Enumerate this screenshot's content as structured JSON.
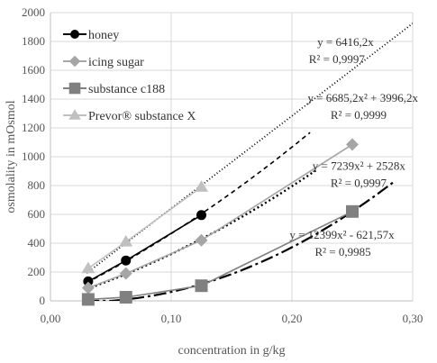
{
  "chart_data": {
    "type": "scatter",
    "xlabel": "concentration in g/kg",
    "ylabel": "osmolality in mOsmol",
    "xlim": [
      0,
      0.3
    ],
    "ylim": [
      0,
      2000
    ],
    "x_ticks": [
      {
        "value": 0.0,
        "label": "0,00"
      },
      {
        "value": 0.1,
        "label": "0,10"
      },
      {
        "value": 0.2,
        "label": "0,20"
      },
      {
        "value": 0.3,
        "label": "0,30"
      }
    ],
    "y_ticks": [
      {
        "value": 0,
        "label": "0"
      },
      {
        "value": 200,
        "label": "200"
      },
      {
        "value": 400,
        "label": "400"
      },
      {
        "value": 600,
        "label": "600"
      },
      {
        "value": 800,
        "label": "800"
      },
      {
        "value": 1000,
        "label": "1000"
      },
      {
        "value": 1200,
        "label": "1200"
      },
      {
        "value": 1400,
        "label": "1400"
      },
      {
        "value": 1600,
        "label": "1600"
      },
      {
        "value": 1800,
        "label": "1800"
      },
      {
        "value": 2000,
        "label": "2000"
      }
    ],
    "grid": {
      "horizontal": true,
      "vertical": true
    },
    "legend_position": "top-left",
    "series": [
      {
        "name": "honey",
        "marker": "circle",
        "color": "#000000",
        "x": [
          0.03125,
          0.0625,
          0.125
        ],
        "y": [
          135,
          280,
          595
        ],
        "trend": {
          "a": 6685.2,
          "b": 3996.2,
          "c": 0,
          "x_end": 0.215,
          "color": "#000000",
          "dash": "5,4",
          "width": 1.6
        },
        "connector_color": "#000000"
      },
      {
        "name": "icing sugar",
        "marker": "diamond",
        "color": "#a6a6a6",
        "x": [
          0.03125,
          0.0625,
          0.125,
          0.25
        ],
        "y": [
          90,
          190,
          420,
          1085
        ],
        "trend": {
          "a": 7239,
          "b": 2528,
          "c": 0,
          "x_end": 0.22,
          "color": "#000000",
          "dash": "2,3",
          "width": 2.4
        },
        "connector_color": "#a6a6a6"
      },
      {
        "name": "substance c188",
        "marker": "square",
        "color": "#808080",
        "x": [
          0.03125,
          0.0625,
          0.125,
          0.25
        ],
        "y": [
          10,
          25,
          105,
          620
        ],
        "trend": {
          "a": 12399,
          "b": -621.57,
          "c": 0,
          "x_end": 0.285,
          "color": "#000000",
          "dash": "14,4,3,4",
          "width": 2.2
        },
        "connector_color": "#808080"
      },
      {
        "name": "Prevor® substance X",
        "marker": "triangle",
        "color": "#c0c0c0",
        "x": [
          0.03125,
          0.0625,
          0.125
        ],
        "y": [
          225,
          410,
          790
        ],
        "trend": {
          "a": 0,
          "b": 6416.2,
          "c": 0,
          "x_end": 0.3,
          "color": "#000000",
          "dash": "1,2.5",
          "width": 1.8
        },
        "connector_color": "#c0c0c0"
      }
    ],
    "annotations": [
      {
        "line1": "y = 6416,2x",
        "line2": "R² = 0,9997",
        "at_x": 0.221,
        "at_y": 1770,
        "line2_x": 0.214
      },
      {
        "line1": "y = 6685,2x² + 3996,2x",
        "line2": "R² = 0,9999",
        "at_x": 0.213,
        "at_y": 1380,
        "line2_x": 0.232
      },
      {
        "line1": "y = 7239x² + 2528x",
        "line2": "R² = 0,9997",
        "at_x": 0.217,
        "at_y": 910,
        "line2_x": 0.232
      },
      {
        "line1": "y = 12399x² - 621,57x",
        "line2": "R² = 0,9985",
        "at_x": 0.198,
        "at_y": 430,
        "line2_x": 0.219
      }
    ]
  }
}
